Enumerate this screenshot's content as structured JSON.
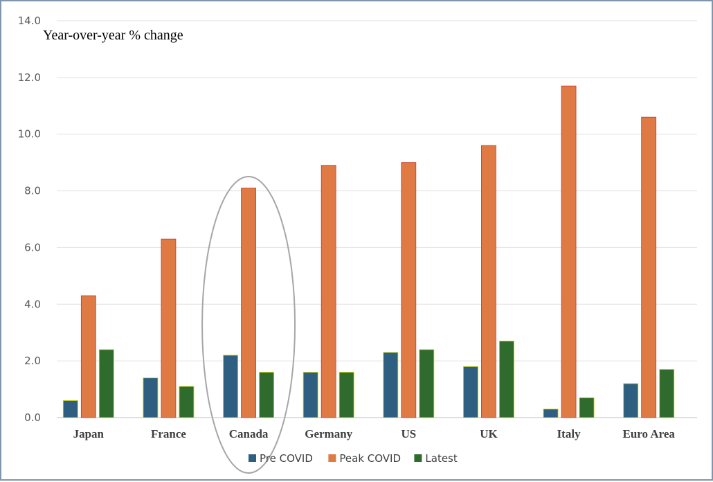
{
  "chart_data": {
    "type": "bar",
    "ylabel": "Year-over-year % change",
    "ylim": [
      0,
      14
    ],
    "yticks": [
      "0.0",
      "2.0",
      "4.0",
      "6.0",
      "8.0",
      "10.0",
      "12.0",
      "14.0"
    ],
    "grid": true,
    "legend_position": "bottom",
    "categories": [
      "Japan",
      "France",
      "Canada",
      "Germany",
      "US",
      "UK",
      "Italy",
      "Euro Area"
    ],
    "series": [
      {
        "name": "Pre COVID",
        "color": "#2e5f80",
        "values": [
          0.6,
          1.4,
          2.2,
          1.6,
          2.3,
          1.8,
          0.3,
          1.2
        ]
      },
      {
        "name": "Peak COVID",
        "color": "#e07a45",
        "values": [
          4.3,
          6.3,
          8.1,
          8.9,
          9.0,
          9.6,
          11.7,
          10.6
        ]
      },
      {
        "name": "Latest",
        "color": "#2f6b2c",
        "values": [
          2.4,
          1.1,
          1.6,
          1.6,
          2.4,
          2.7,
          0.7,
          1.7
        ]
      }
    ],
    "annotations": [
      {
        "type": "ellipse-highlight",
        "category": "Canada",
        "color": "#a6a6a6"
      }
    ]
  }
}
